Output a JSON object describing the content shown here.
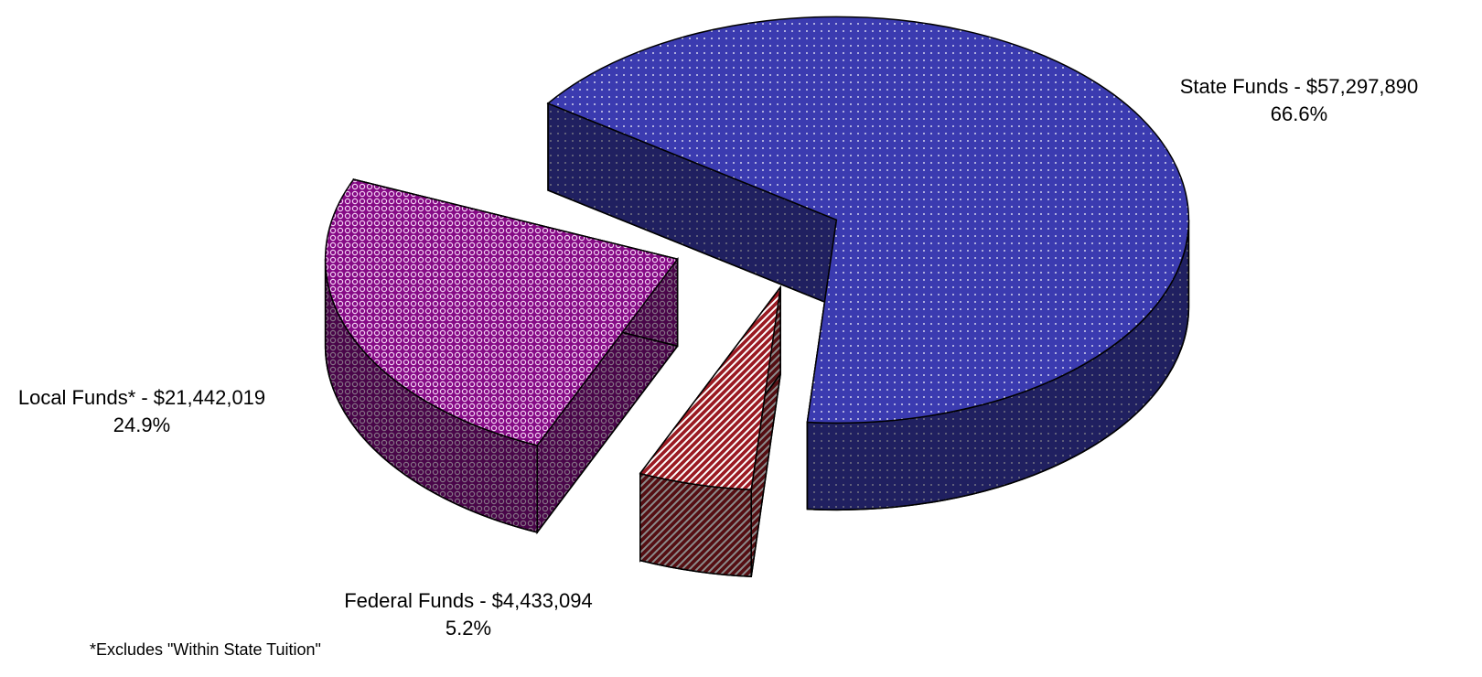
{
  "chart_data": {
    "type": "pie",
    "categories": [
      "State Funds - $57,297,890",
      "Federal Funds - $4,433,094",
      "Local Funds* - $21,442,019"
    ],
    "values": [
      66.6,
      5.2,
      24.9
    ],
    "value_labels": [
      "66.6%",
      "5.2%",
      "24.9%"
    ],
    "colors": [
      "#3b3bb0",
      "#9a1a22",
      "#850a85"
    ],
    "footnote": "*Excludes \"Within State Tuition\""
  }
}
